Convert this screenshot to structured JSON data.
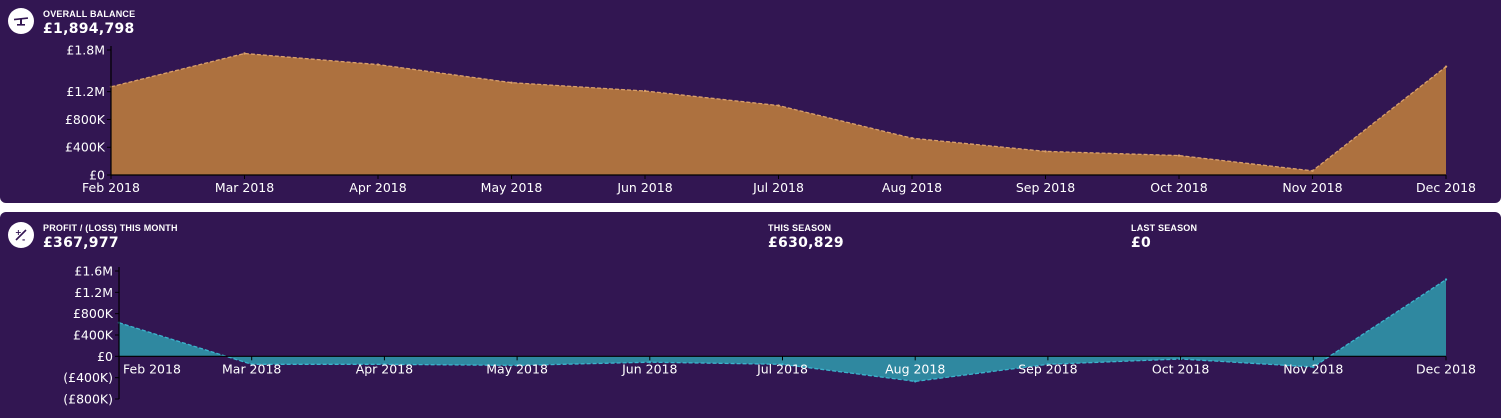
{
  "balance": {
    "label": "OVERALL BALANCE",
    "value": "£1,894,798",
    "icon": "balance-scale-icon"
  },
  "profit": {
    "label": "PROFIT / (LOSS) THIS MONTH",
    "value": "£367,977",
    "icon": "fraction-icon"
  },
  "this_season": {
    "label": "THIS SEASON",
    "value": "£630,829"
  },
  "last_season": {
    "label": "LAST SEASON",
    "value": "£0"
  },
  "colors": {
    "background": "#321652",
    "balance_fill": "#ad713f",
    "balance_line": "#d9a06a",
    "profit_fill": "#2f88a0",
    "profit_line": "#3bb3cc"
  },
  "chart_data": [
    {
      "type": "area",
      "ylim": [
        0,
        1800000
      ],
      "categories": [
        "Feb 2018",
        "Mar 2018",
        "Apr 2018",
        "May 2018",
        "Jun 2018",
        "Jul 2018",
        "Aug 2018",
        "Sep 2018",
        "Oct 2018",
        "Nov 2018",
        "Dec 2018"
      ],
      "yticks": [
        {
          "value": 0,
          "label": "£0"
        },
        {
          "value": 400000,
          "label": "£400K"
        },
        {
          "value": 800000,
          "label": "£800K"
        },
        {
          "value": 1200000,
          "label": "£1.2M"
        },
        {
          "value": 1800000,
          "label": "£1.8M"
        }
      ],
      "series": [
        {
          "values": [
            1270000,
            1750000,
            1590000,
            1330000,
            1210000,
            1000000,
            530000,
            340000,
            280000,
            60000,
            1560000
          ]
        }
      ]
    },
    {
      "type": "area",
      "ylim": [
        -800000,
        1600000
      ],
      "categories": [
        "Feb 2018",
        "Mar 2018",
        "Apr 2018",
        "May 2018",
        "Jun 2018",
        "Jul 2018",
        "Aug 2018",
        "Sep 2018",
        "Oct 2018",
        "Nov 2018",
        "Dec 2018"
      ],
      "yticks": [
        {
          "value": 1600000,
          "label": "£1.6M"
        },
        {
          "value": 1200000,
          "label": "£1.2M"
        },
        {
          "value": 800000,
          "label": "£800K"
        },
        {
          "value": 400000,
          "label": "£400K"
        },
        {
          "value": 0,
          "label": "£0"
        },
        {
          "value": -400000,
          "label": "(£400K)"
        },
        {
          "value": -800000,
          "label": "(£800K)"
        }
      ],
      "series": [
        {
          "values": [
            630000,
            -150000,
            -150000,
            -170000,
            -110000,
            -150000,
            -470000,
            -150000,
            -50000,
            -200000,
            1440000
          ]
        }
      ]
    }
  ]
}
